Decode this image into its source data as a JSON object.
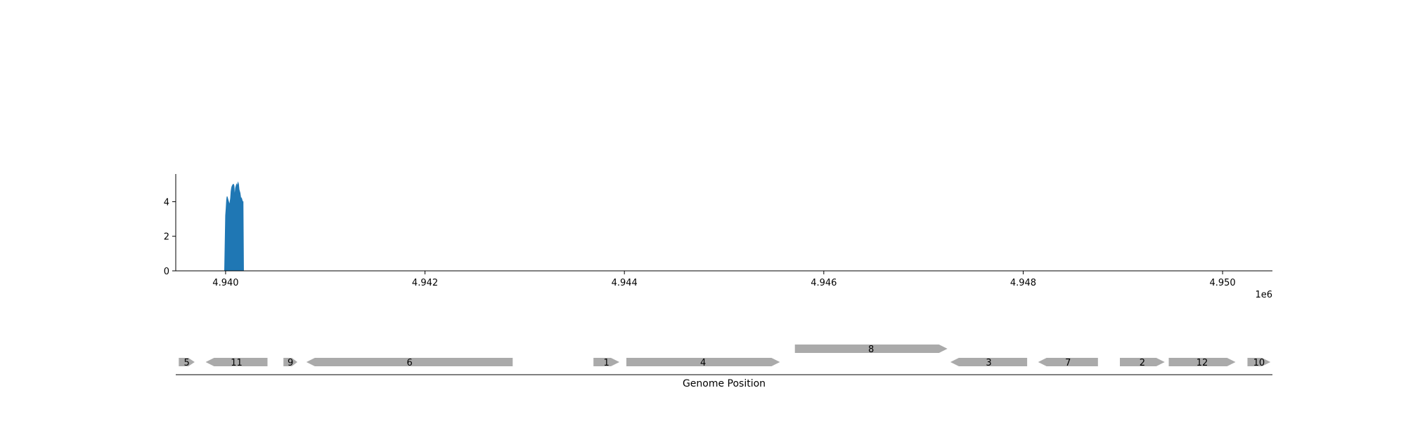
{
  "chart_data": [
    {
      "type": "area",
      "title": "",
      "xlabel": "",
      "ylabel": "",
      "x_offset_label": "1e6",
      "xlim": [
        4939500,
        4950500
      ],
      "ylim": [
        0,
        5.6
      ],
      "x_ticks": [
        4940000,
        4942000,
        4944000,
        4946000,
        4948000,
        4950000
      ],
      "x_tick_labels": [
        "4.940",
        "4.942",
        "4.944",
        "4.946",
        "4.948",
        "4.950"
      ],
      "y_ticks": [
        0,
        2,
        4
      ],
      "y_tick_labels": [
        "0",
        "2",
        "4"
      ],
      "color": "#1f77b4",
      "series": [
        {
          "x": [
            4939500,
            4939990,
            4940000,
            4940005,
            4940010,
            4940015,
            4940020,
            4940025,
            4940030,
            4940035,
            4940040,
            4940045,
            4940050,
            4940055,
            4940060,
            4940065,
            4940070,
            4940075,
            4940080,
            4940085,
            4940090,
            4940095,
            4940100,
            4940105,
            4940110,
            4940115,
            4940120,
            4940125,
            4940130,
            4940135,
            4940140,
            4940145,
            4940150,
            4940155,
            4940160,
            4940165,
            4940170,
            4940175,
            4940180,
            4940185,
            4940190,
            4940195,
            4940200,
            4940205,
            4950000
          ],
          "y": [
            0,
            0,
            3.2,
            3.6,
            4.1,
            4.3,
            4.2,
            4.1,
            4.0,
            3.9,
            3.8,
            4.0,
            4.2,
            4.6,
            4.8,
            4.9,
            4.95,
            5.0,
            5.0,
            4.9,
            4.3,
            4.5,
            4.8,
            4.9,
            5.0,
            4.9,
            5.0,
            5.1,
            5.0,
            4.7,
            4.6,
            4.5,
            4.3,
            4.1,
            4.2,
            4.1,
            4.0,
            4.0,
            0,
            0,
            0,
            0,
            0,
            0,
            0
          ]
        }
      ]
    },
    {
      "type": "gene-track",
      "xlabel": "Genome Position",
      "genes": [
        {
          "label": "5",
          "start": 4939530,
          "end": 4939690,
          "strand": "+",
          "row": 0
        },
        {
          "label": "11",
          "start": 4939800,
          "end": 4940420,
          "strand": "-",
          "row": 0
        },
        {
          "label": "9",
          "start": 4940580,
          "end": 4940720,
          "strand": "+",
          "row": 0
        },
        {
          "label": "6",
          "start": 4940810,
          "end": 4942880,
          "strand": "-",
          "row": 0
        },
        {
          "label": "1",
          "start": 4943690,
          "end": 4943950,
          "strand": "+",
          "row": 0
        },
        {
          "label": "4",
          "start": 4944020,
          "end": 4945560,
          "strand": "+",
          "row": 0
        },
        {
          "label": "8",
          "start": 4945710,
          "end": 4947240,
          "strand": "+",
          "row": 1
        },
        {
          "label": "3",
          "start": 4947270,
          "end": 4948040,
          "strand": "-",
          "row": 0
        },
        {
          "label": "7",
          "start": 4948150,
          "end": 4948750,
          "strand": "-",
          "row": 0
        },
        {
          "label": "2",
          "start": 4948970,
          "end": 4949420,
          "strand": "+",
          "row": 0
        },
        {
          "label": "12",
          "start": 4949460,
          "end": 4950130,
          "strand": "+",
          "row": 0
        },
        {
          "label": "10",
          "start": 4950250,
          "end": 4950480,
          "strand": "+",
          "row": 0
        }
      ],
      "gene_color": "#aaaaaa"
    }
  ]
}
